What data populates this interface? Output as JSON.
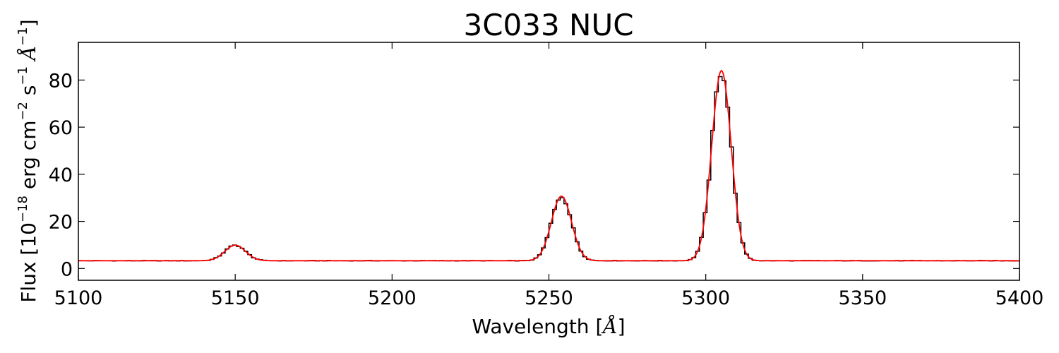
{
  "chart_data": {
    "type": "line",
    "title": "3C033 NUC",
    "xlabel": {
      "prefix": "Wavelength [",
      "symbol": "Å",
      "suffix": "]"
    },
    "ylabel": {
      "prefix": "Flux [10",
      "exp1": "−18",
      "mid1": " erg cm",
      "exp2": "−2",
      "mid2": " s",
      "exp3": "−1",
      "symbol": " Å",
      "exp4": "−1",
      "suffix": "]"
    },
    "xlim": [
      5100,
      5400
    ],
    "ylim": [
      -5,
      96
    ],
    "xticks": [
      5100,
      5150,
      5200,
      5250,
      5300,
      5350,
      5400
    ],
    "yticks": [
      0,
      20,
      40,
      60,
      80
    ],
    "grid": false,
    "continuum": 3.3,
    "lines": [
      {
        "center": 5150.0,
        "amplitude": 6.6,
        "sigma": 3.3
      },
      {
        "center": 5254.0,
        "amplitude": 27.4,
        "sigma": 3.2
      },
      {
        "center": 5305.0,
        "amplitude": 80.7,
        "sigma": 3.1
      }
    ],
    "series": [
      {
        "kind": "observed",
        "render": "step",
        "color": "#000000",
        "bin_width": 1.2
      },
      {
        "kind": "model",
        "render": "line",
        "color": "#ff0000"
      }
    ]
  }
}
